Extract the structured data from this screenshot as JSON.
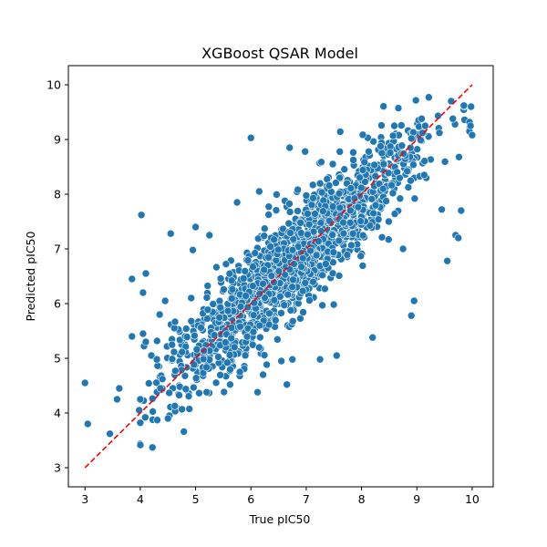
{
  "chart_data": {
    "type": "scatter",
    "title": "XGBoost QSAR Model",
    "xlabel": "True pIC50",
    "ylabel": "Predicted pIC50",
    "xlim": [
      2.7,
      10.38
    ],
    "ylim": [
      2.65,
      10.35
    ],
    "xticks": [
      3,
      4,
      5,
      6,
      7,
      8,
      9,
      10
    ],
    "yticks": [
      3,
      4,
      5,
      6,
      7,
      8,
      9,
      10
    ],
    "grid": false,
    "point_color": "#1f77b4",
    "reference_line": {
      "from": [
        3.0,
        3.0
      ],
      "to": [
        10.0,
        10.0
      ],
      "color": "#ff0000",
      "style": "dashed"
    },
    "outliers": [
      [
        3.0,
        4.55
      ],
      [
        3.05,
        3.8
      ],
      [
        3.45,
        3.62
      ],
      [
        3.58,
        4.25
      ],
      [
        3.62,
        4.45
      ],
      [
        3.85,
        6.45
      ],
      [
        3.98,
        4.05
      ],
      [
        4.0,
        3.82
      ],
      [
        4.0,
        4.25
      ],
      [
        4.02,
        7.62
      ],
      [
        4.05,
        6.2
      ],
      [
        4.1,
        6.55
      ],
      [
        4.22,
        3.37
      ],
      [
        4.4,
        4.62
      ],
      [
        4.5,
        3.9
      ],
      [
        4.55,
        7.28
      ],
      [
        4.95,
        6.98
      ],
      [
        5.0,
        7.4
      ],
      [
        5.25,
        7.25
      ],
      [
        5.2,
        4.38
      ],
      [
        5.75,
        7.85
      ],
      [
        5.8,
        4.75
      ],
      [
        6.0,
        9.03
      ],
      [
        6.15,
        8.05
      ],
      [
        6.12,
        4.38
      ],
      [
        6.22,
        4.7
      ],
      [
        6.55,
        4.95
      ],
      [
        6.65,
        4.52
      ],
      [
        6.7,
        8.85
      ],
      [
        6.75,
        4.98
      ],
      [
        6.98,
        8.78
      ],
      [
        7.25,
        4.98
      ],
      [
        7.48,
        8.55
      ],
      [
        7.55,
        5.05
      ],
      [
        8.2,
        5.38
      ],
      [
        8.75,
        7.0
      ],
      [
        8.9,
        5.78
      ],
      [
        8.95,
        6.05
      ],
      [
        9.45,
        7.72
      ],
      [
        9.55,
        6.78
      ],
      [
        9.7,
        7.25
      ],
      [
        9.75,
        7.2
      ],
      [
        9.8,
        7.7
      ],
      [
        9.85,
        9.62
      ],
      [
        9.95,
        9.15
      ],
      [
        9.98,
        9.6
      ],
      [
        10.0,
        9.08
      ],
      [
        9.97,
        9.25
      ],
      [
        9.62,
        9.7
      ],
      [
        9.65,
        9.38
      ],
      [
        9.15,
        9.25
      ],
      [
        9.1,
        9.12
      ],
      [
        8.4,
        8.55
      ],
      [
        3.85,
        5.4
      ],
      [
        4.05,
        5.45
      ],
      [
        4.1,
        5.3
      ],
      [
        4.2,
        5.05
      ],
      [
        4.3,
        4.98
      ],
      [
        4.35,
        5.8
      ],
      [
        4.45,
        6.05
      ]
    ]
  }
}
